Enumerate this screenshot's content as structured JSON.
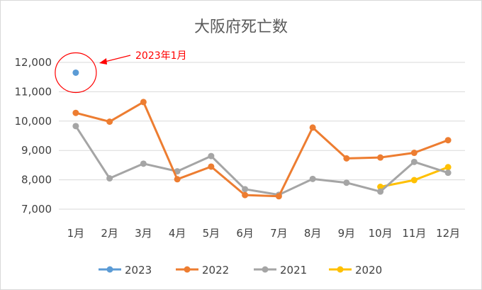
{
  "chart_data": {
    "type": "line",
    "title": "大阪府死亡数",
    "categories": [
      "1月",
      "2月",
      "3月",
      "4月",
      "5月",
      "6月",
      "7月",
      "8月",
      "9月",
      "10月",
      "11月",
      "12月"
    ],
    "yticks": [
      "7,000",
      "8,000",
      "9,000",
      "10,000",
      "11,000",
      "12,000"
    ],
    "ylim": [
      7000,
      12000
    ],
    "grid": true,
    "legend_position": "bottom",
    "series": [
      {
        "name": "2023",
        "color": "#5b9bd5",
        "values": [
          11650,
          null,
          null,
          null,
          null,
          null,
          null,
          null,
          null,
          null,
          null,
          null
        ]
      },
      {
        "name": "2022",
        "color": "#ed7d31",
        "values": [
          10280,
          9980,
          10650,
          8020,
          8450,
          7480,
          7440,
          9780,
          8730,
          8760,
          8920,
          9350
        ]
      },
      {
        "name": "2021",
        "color": "#a5a5a5",
        "values": [
          9830,
          8050,
          8550,
          8290,
          8810,
          7680,
          7490,
          8030,
          7900,
          7600,
          8610,
          8240
        ]
      },
      {
        "name": "2020",
        "color": "#ffc000",
        "values": [
          null,
          null,
          null,
          null,
          null,
          null,
          null,
          null,
          null,
          7760,
          7990,
          8430
        ]
      }
    ],
    "annotation": {
      "text": "2023年1月",
      "color": "#ff0000",
      "series": "2023",
      "category": "1月"
    }
  }
}
